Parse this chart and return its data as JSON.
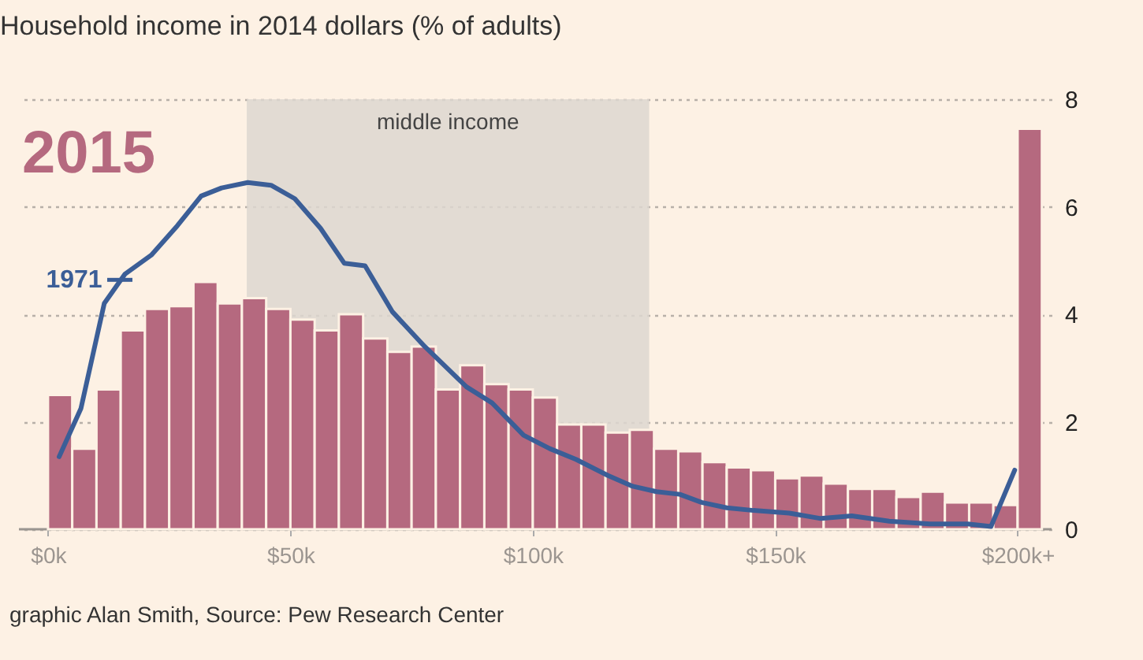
{
  "chart_data": {
    "type": "histogram",
    "title": "Household income in 2014 dollars (% of adults)",
    "bins": [
      0,
      5,
      10,
      15,
      20,
      25,
      30,
      35,
      40,
      45,
      50,
      55,
      60,
      65,
      70,
      75,
      80,
      85,
      90,
      95,
      100,
      105,
      110,
      115,
      120,
      125,
      130,
      135,
      140,
      145,
      150,
      155,
      160,
      165,
      170,
      175,
      180,
      185,
      190,
      195,
      200,
      205
    ],
    "series": [
      {
        "name": "2015",
        "color": "#b5697f",
        "values": [
          2.5,
          1.5,
          2.6,
          3.7,
          4.1,
          4.15,
          4.6,
          4.2,
          4.3,
          4.1,
          3.9,
          3.7,
          4.0,
          3.55,
          3.3,
          3.4,
          2.6,
          3.05,
          2.7,
          2.6,
          2.45,
          1.95,
          1.95,
          1.8,
          1.85,
          1.5,
          1.45,
          1.25,
          1.15,
          1.1,
          0.95,
          1.0,
          0.85,
          0.75,
          0.75,
          0.6,
          0.7,
          0.5,
          0.5,
          0.45,
          7.45
        ]
      },
      {
        "name": "1971",
        "type": "line",
        "color": "#3b5e97",
        "x": [
          2.3,
          6.8,
          11.6,
          15.9,
          21.3,
          26.7,
          31.6,
          35.8,
          41.2,
          46,
          50.9,
          56.2,
          61.1,
          65.4,
          71,
          77.7,
          86.3,
          91.6,
          98.1,
          103.5,
          108.9,
          115.5,
          120.6,
          125.5,
          130.3,
          134.8,
          140,
          145.5,
          152.9,
          159.4,
          165.8,
          173.5,
          181.9,
          189.7,
          194.5,
          199.4
        ],
        "values": [
          1.35,
          2.25,
          4.2,
          4.75,
          5.1,
          5.65,
          6.2,
          6.35,
          6.45,
          6.4,
          6.15,
          5.6,
          4.95,
          4.9,
          4.05,
          3.4,
          2.65,
          2.35,
          1.75,
          1.5,
          1.3,
          1.0,
          0.8,
          0.7,
          0.65,
          0.5,
          0.4,
          0.35,
          0.3,
          0.2,
          0.25,
          0.15,
          0.1,
          0.1,
          0.05,
          1.1
        ]
      }
    ],
    "xlim": [
      -6,
      207
    ],
    "xticks": [
      {
        "value": 0,
        "label": "$0k"
      },
      {
        "value": 50,
        "label": "$50k"
      },
      {
        "value": 100,
        "label": "$100k"
      },
      {
        "value": 150,
        "label": "$150k"
      },
      {
        "value": 200,
        "label": "$200k+"
      }
    ],
    "ylim": [
      0,
      8
    ],
    "yticks": [
      0,
      2,
      4,
      6,
      8
    ],
    "grid": "y",
    "legend": "left",
    "line_style": "solid",
    "marker": "none",
    "bands": [
      {
        "axis": "x",
        "from": 41,
        "to": 124,
        "label": "middle income",
        "color": "#ddd7d0"
      }
    ],
    "annotations": [
      "graphic Alan Smith, Source: Pew Research Center"
    ]
  }
}
